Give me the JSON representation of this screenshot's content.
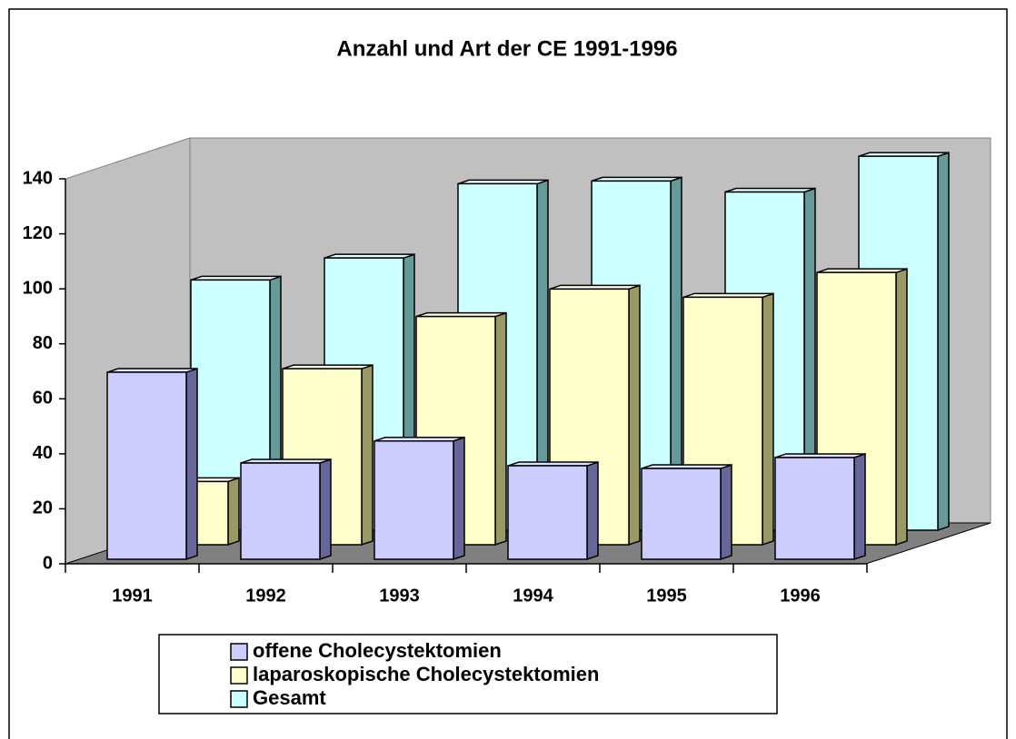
{
  "chart_data": {
    "type": "bar3d",
    "title": "Anzahl und Art der CE 1991-1996",
    "categories": [
      "1991",
      "1992",
      "1993",
      "1994",
      "1995",
      "1996"
    ],
    "series": [
      {
        "name": "offene Cholecystektomien",
        "color": "#ccccff",
        "values": [
          68,
          35,
          43,
          34,
          33,
          37
        ]
      },
      {
        "name": "laparoskopische Cholecystektomien",
        "color": "#ffffcc",
        "values": [
          23,
          64,
          83,
          93,
          90,
          99
        ]
      },
      {
        "name": "Gesamt",
        "color": "#ccffff",
        "values": [
          91,
          99,
          126,
          127,
          123,
          136
        ]
      }
    ],
    "ylim": [
      0,
      140
    ],
    "yticks": [
      0,
      20,
      40,
      60,
      80,
      100,
      120,
      140
    ]
  }
}
